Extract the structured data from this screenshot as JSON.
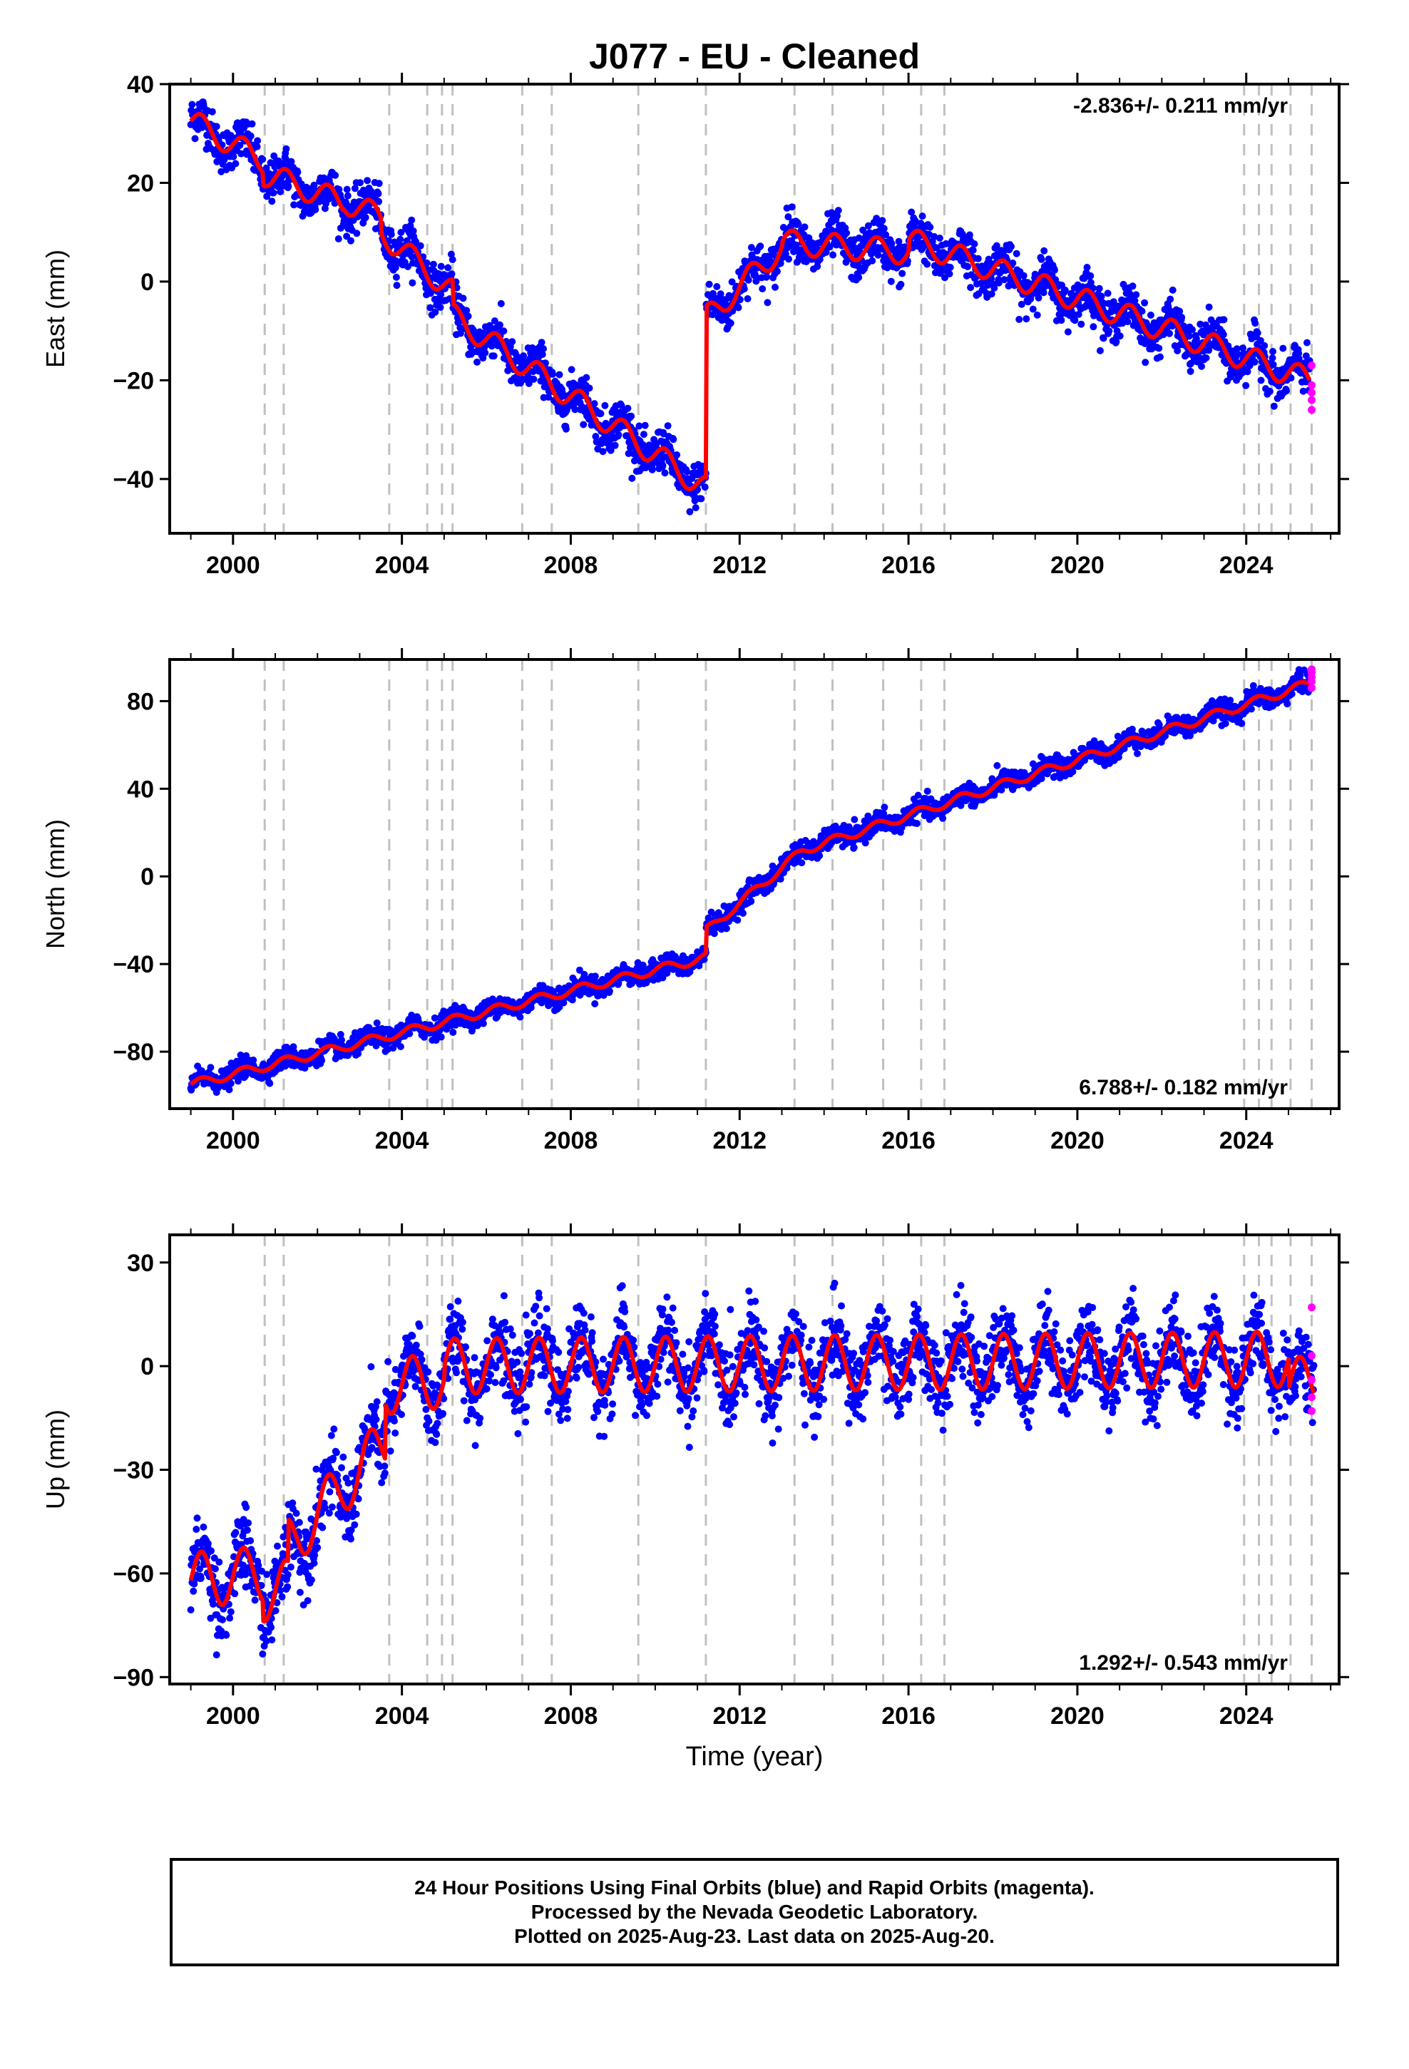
{
  "title": "J077  - EU - Cleaned",
  "colors": {
    "final_orbits": "#0000ff",
    "rapid_orbits": "#ff00ff",
    "model_fit": "#ff0000",
    "event_lines": "#c0c0c0",
    "axis": "#000000"
  },
  "chart_data": [
    {
      "type": "scatter",
      "panel": "east",
      "ylabel": "East (mm)",
      "xlabel": "",
      "xlim": [
        1998.5,
        2026.2
      ],
      "ylim": [
        -51,
        40
      ],
      "yticks": [
        40,
        20,
        0,
        -20,
        -40
      ],
      "ytick_labels": [
        "40",
        "20",
        "0",
        "−20",
        "−40"
      ],
      "xticks": [
        2000,
        2004,
        2008,
        2012,
        2016,
        2020,
        2024
      ],
      "xtick_labels": [
        "2000",
        "2004",
        "2008",
        "2012",
        "2016",
        "2020",
        "2024"
      ],
      "rate_label": "-2.836+/- 0.211 mm/yr",
      "rate_position": "top-right",
      "segments": [
        {
          "x0": 1999.0,
          "x1": 2000.7,
          "y0": 32.5,
          "y1": 24.5
        },
        {
          "x0": 2000.7,
          "x1": 2002.6,
          "y0": 22.0,
          "y1": 16.0
        },
        {
          "x0": 2002.6,
          "x1": 2003.5,
          "y0": 16.5,
          "y1": 13.0
        },
        {
          "x0": 2003.5,
          "x1": 2005.2,
          "y0": 10.0,
          "y1": -2.0
        },
        {
          "x0": 2005.2,
          "x1": 2011.2,
          "y0": -7.0,
          "y1": -42.0
        },
        {
          "x0": 2011.2,
          "x1": 2013.0,
          "y0": -7.5,
          "y1": 7.0
        },
        {
          "x0": 2013.0,
          "x1": 2016.0,
          "y0": 8.0,
          "y1": 6.0
        },
        {
          "x0": 2016.0,
          "x1": 2025.5,
          "y0": 8.5,
          "y1": -20.0
        }
      ],
      "annual_amplitude": 2.5,
      "scatter_noise": 2.2,
      "rapid_points": [
        [
          2025.55,
          -17.0
        ],
        [
          2025.55,
          -21.0
        ],
        [
          2025.55,
          -22.5
        ],
        [
          2025.55,
          -24.0
        ],
        [
          2025.55,
          -26.0
        ]
      ]
    },
    {
      "type": "scatter",
      "panel": "north",
      "ylabel": "North (mm)",
      "xlabel": "",
      "xlim": [
        1998.5,
        2026.2
      ],
      "ylim": [
        -106,
        99
      ],
      "yticks": [
        80,
        40,
        0,
        -40,
        -80
      ],
      "ytick_labels": [
        "80",
        "40",
        "0",
        "−40",
        "−80"
      ],
      "xticks": [
        2000,
        2004,
        2008,
        2012,
        2016,
        2020,
        2024
      ],
      "xtick_labels": [
        "2000",
        "2004",
        "2008",
        "2012",
        "2016",
        "2020",
        "2024"
      ],
      "rate_label": "6.788+/- 0.182 mm/yr",
      "rate_position": "bottom-right",
      "segments": [
        {
          "x0": 1999.0,
          "x1": 2011.2,
          "y0": -95.0,
          "y1": -37.0
        },
        {
          "x0": 2011.2,
          "x1": 2013.5,
          "y0": -25.0,
          "y1": 12.0
        },
        {
          "x0": 2013.5,
          "x1": 2025.5,
          "y0": 12.0,
          "y1": 88.0
        }
      ],
      "annual_amplitude": 2.0,
      "scatter_noise": 2.3,
      "rapid_points": [
        [
          2025.55,
          86.0
        ],
        [
          2025.55,
          89.0
        ],
        [
          2025.55,
          91.0
        ],
        [
          2025.55,
          93.0
        ],
        [
          2025.55,
          94.5
        ]
      ]
    },
    {
      "type": "scatter",
      "panel": "up",
      "ylabel": "Up (mm)",
      "xlabel": "Time (year)",
      "xlim": [
        1998.5,
        2026.2
      ],
      "ylim": [
        -92,
        38
      ],
      "yticks": [
        30,
        0,
        -30,
        -60,
        -90
      ],
      "ytick_labels": [
        "30",
        "0",
        "−30",
        "−60",
        "−90"
      ],
      "xticks": [
        2000,
        2004,
        2008,
        2012,
        2016,
        2020,
        2024
      ],
      "xtick_labels": [
        "2000",
        "2004",
        "2008",
        "2012",
        "2016",
        "2020",
        "2024"
      ],
      "rate_label": "1.292+/- 0.543 mm/yr",
      "rate_position": "bottom-right",
      "segments": [
        {
          "x0": 1999.0,
          "x1": 2000.7,
          "y0": -62.0,
          "y1": -60.0
        },
        {
          "x0": 2000.7,
          "x1": 2001.3,
          "y0": -66.0,
          "y1": -64.0
        },
        {
          "x0": 2001.3,
          "x1": 2002.6,
          "y0": -52.0,
          "y1": -35.0
        },
        {
          "x0": 2002.6,
          "x1": 2003.6,
          "y0": -35.0,
          "y1": -22.0
        },
        {
          "x0": 2003.6,
          "x1": 2005.0,
          "y0": -6.0,
          "y1": -4.0
        },
        {
          "x0": 2005.0,
          "x1": 2025.0,
          "y0": 0.0,
          "y1": 2.0
        },
        {
          "x0": 2025.0,
          "x1": 2025.6,
          "y0": -7.0,
          "y1": -3.0
        }
      ],
      "annual_amplitude": 8.0,
      "scatter_noise": 5.5,
      "rapid_points": [
        [
          2025.55,
          17.0
        ],
        [
          2025.55,
          3.0
        ],
        [
          2025.55,
          -4.0
        ],
        [
          2025.55,
          -9.0
        ],
        [
          2025.55,
          -13.0
        ]
      ]
    }
  ],
  "event_lines": [
    2000.75,
    2001.2,
    2003.7,
    2004.6,
    2004.95,
    2005.2,
    2006.85,
    2007.55,
    2009.6,
    2011.2,
    2013.3,
    2014.2,
    2015.4,
    2016.3,
    2016.85,
    2023.95,
    2024.3,
    2024.6,
    2025.05,
    2025.55
  ],
  "caption": [
    "24 Hour Positions Using Final Orbits (blue) and Rapid Orbits (magenta).",
    "Processed by the Nevada Geodetic Laboratory.",
    "Plotted on 2025-Aug-23. Last data on 2025-Aug-20."
  ]
}
